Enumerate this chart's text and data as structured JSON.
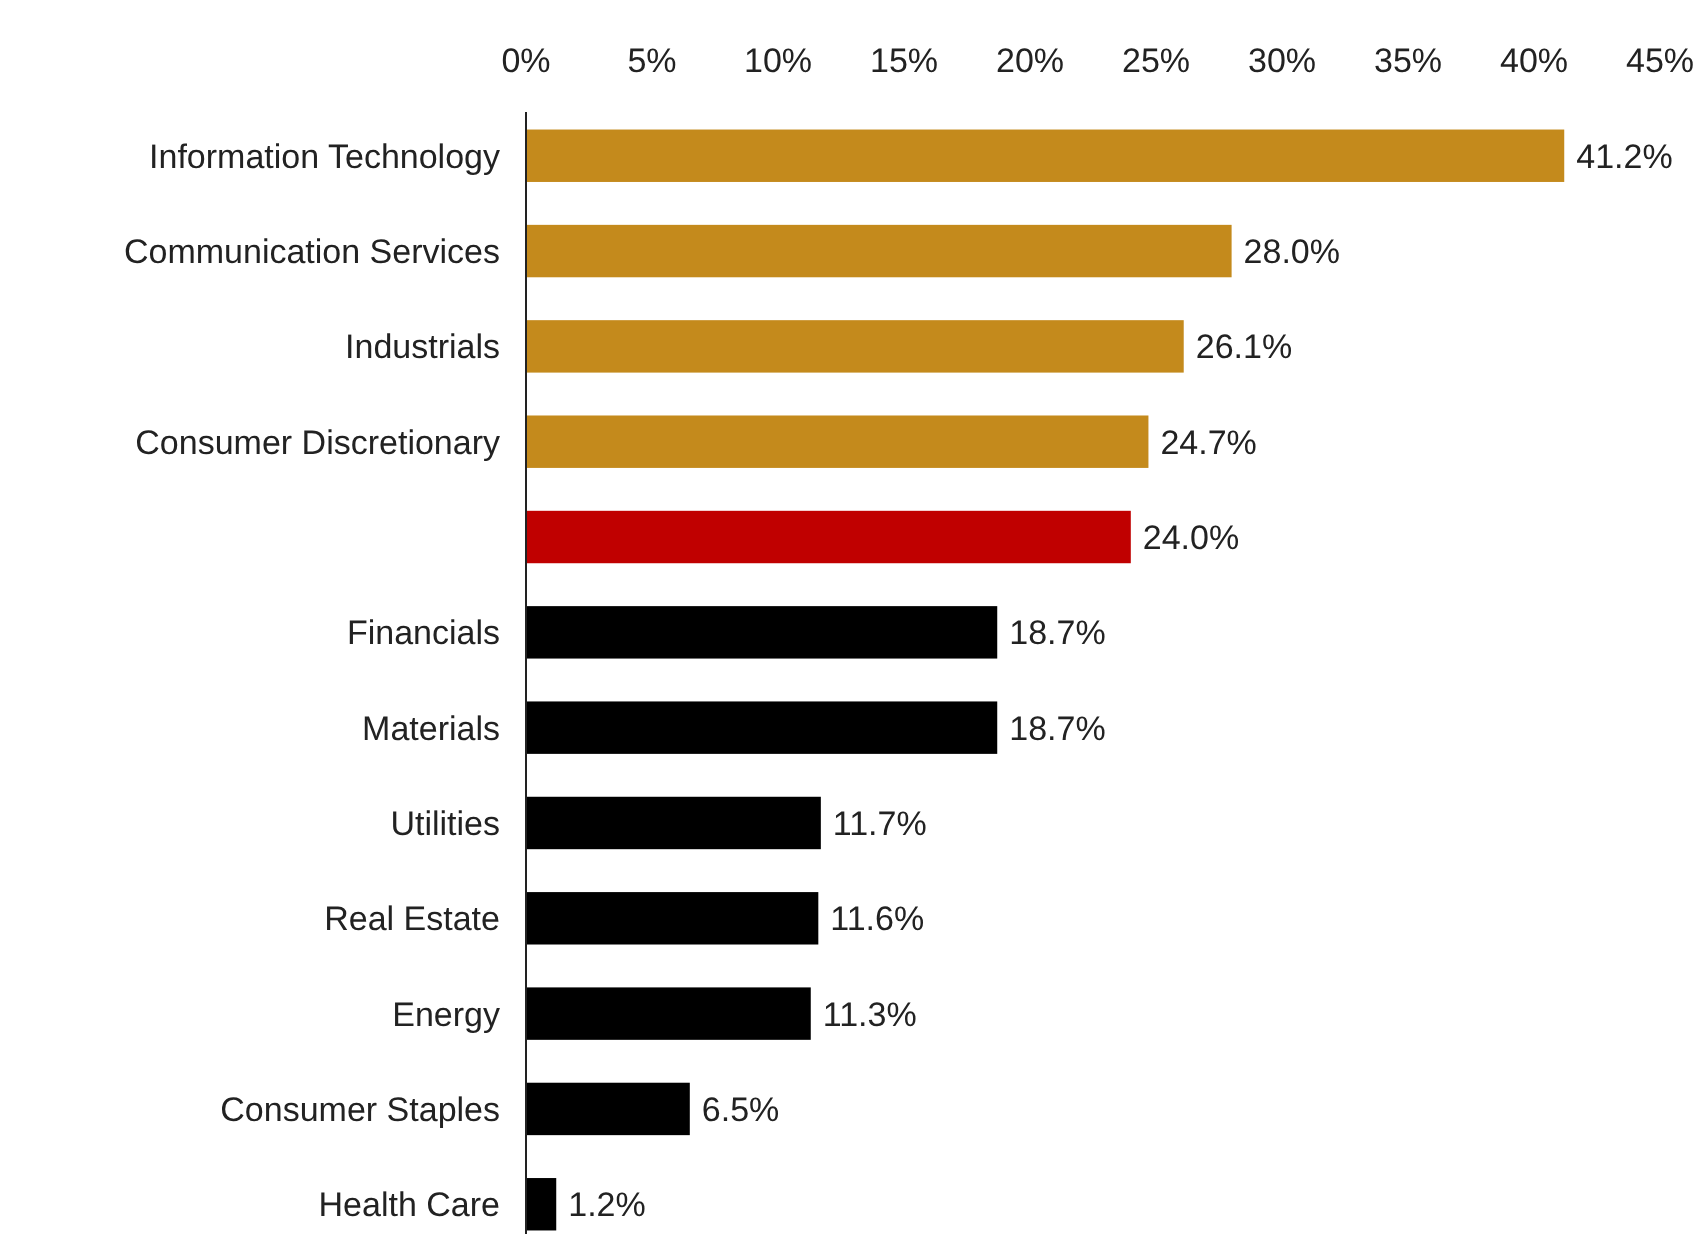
{
  "chart_data": {
    "type": "bar",
    "orientation": "horizontal",
    "categories": [
      "Information Technology",
      "Communication Services",
      "Industrials",
      "Consumer Discretionary",
      null,
      "Financials",
      "Materials",
      "Utilities",
      "Real Estate",
      "Energy",
      "Consumer Staples",
      "Health Care"
    ],
    "values": [
      41.2,
      28.0,
      26.1,
      24.7,
      24.0,
      18.7,
      18.7,
      11.7,
      11.6,
      11.3,
      6.5,
      1.2
    ],
    "colors": [
      "#c48a1c",
      "#c48a1c",
      "#c48a1c",
      "#c48a1c",
      "#c00000",
      "#000000",
      "#000000",
      "#000000",
      "#000000",
      "#000000",
      "#000000",
      "#000000"
    ],
    "value_labels": [
      "41.2%",
      "28.0%",
      "26.1%",
      "24.7%",
      "24.0%",
      "18.7%",
      "18.7%",
      "11.7%",
      "11.6%",
      "11.3%",
      "6.5%",
      "1.2%"
    ],
    "xlim": [
      0,
      45
    ],
    "xticks": [
      {
        "value": 0,
        "label": "0%"
      },
      {
        "value": 5,
        "label": "5%"
      },
      {
        "value": 10,
        "label": "10%"
      },
      {
        "value": 15,
        "label": "15%"
      },
      {
        "value": 20,
        "label": "20%"
      },
      {
        "value": 25,
        "label": "25%"
      },
      {
        "value": 30,
        "label": "30%"
      },
      {
        "value": 35,
        "label": "35%"
      },
      {
        "value": 40,
        "label": "40%"
      },
      {
        "value": 45,
        "label": "45%"
      }
    ],
    "grid": false
  }
}
